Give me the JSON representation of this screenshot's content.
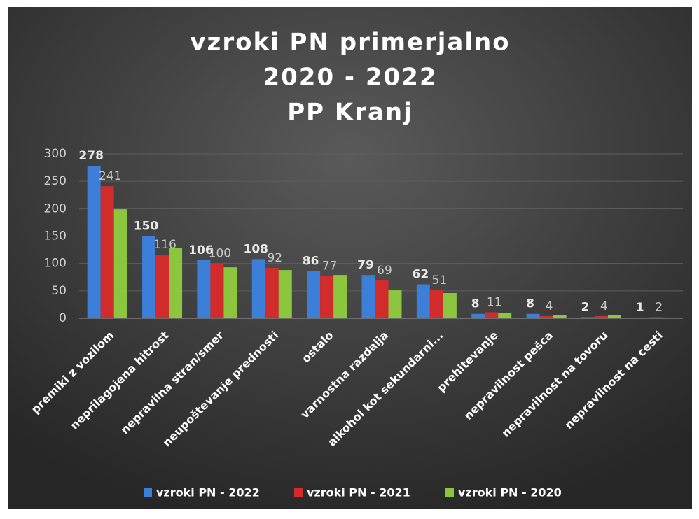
{
  "chart_data": {
    "type": "bar",
    "title_lines": [
      "vzroki PN primerjalno",
      "2020 - 2022",
      "PP Kranj"
    ],
    "categories": [
      "premiki z vozilom",
      "neprilagojena hitrost",
      "nepravilna stran/smer",
      "neupoštevanje prednosti",
      "ostalo",
      "varnostna razdalja",
      "alkohol kot sekundarni...",
      "prehitevanje",
      "nepravilnost pešca",
      "nepravilnost na tovoru",
      "nepravilnost na cesti"
    ],
    "series": [
      {
        "name": "vzroki PN - 2022",
        "color": "#3b7fd8",
        "labels": true,
        "values": [
          278,
          150,
          106,
          108,
          86,
          79,
          62,
          8,
          8,
          2,
          1
        ]
      },
      {
        "name": "vzroki PN - 2021",
        "color": "#d22b2b",
        "labels": true,
        "values": [
          241,
          116,
          100,
          92,
          77,
          69,
          51,
          11,
          4,
          4,
          2
        ]
      },
      {
        "name": "vzroki PN - 2020",
        "color": "#8cc63e",
        "labels": false,
        "values": [
          199,
          128,
          93,
          88,
          79,
          51,
          46,
          10,
          6,
          6,
          0
        ]
      }
    ],
    "ylim": [
      0,
      300
    ],
    "yticks": [
      0,
      50,
      100,
      150,
      200,
      250,
      300
    ],
    "grid": true,
    "legend": "bottom"
  }
}
